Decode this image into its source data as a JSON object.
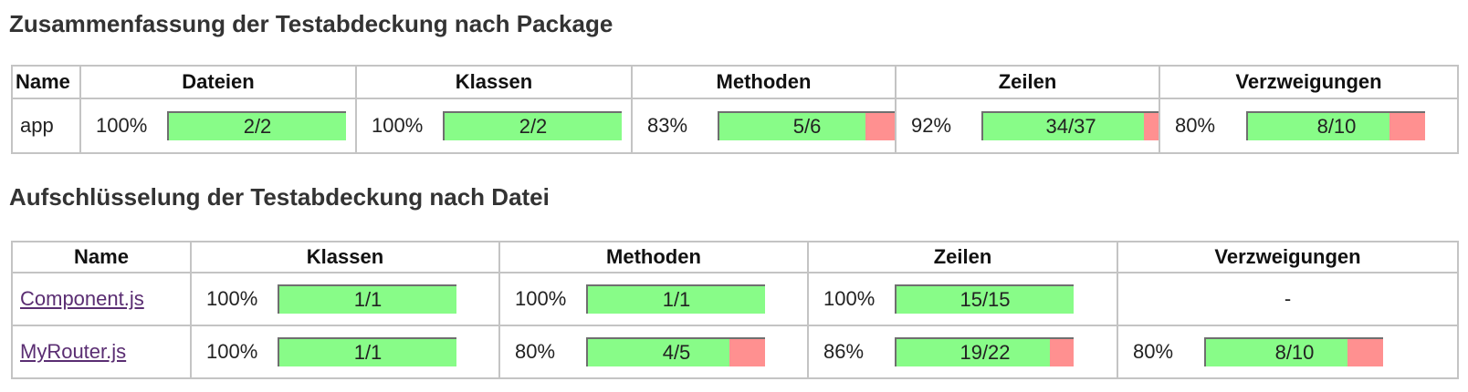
{
  "package_summary": {
    "title": "Zusammenfassung der Testabdeckung nach Package",
    "headers": [
      "Name",
      "Dateien",
      "Klassen",
      "Methoden",
      "Zeilen",
      "Verzweigungen"
    ],
    "rows": [
      {
        "name": "app",
        "cells": [
          {
            "pct": "100%",
            "label": "2/2",
            "ratio": 1.0
          },
          {
            "pct": "100%",
            "label": "2/2",
            "ratio": 1.0
          },
          {
            "pct": "83%",
            "label": "5/6",
            "ratio": 0.8333
          },
          {
            "pct": "92%",
            "label": "34/37",
            "ratio": 0.9189
          },
          {
            "pct": "80%",
            "label": "8/10",
            "ratio": 0.8
          }
        ]
      }
    ]
  },
  "file_breakdown": {
    "title": "Aufschlüsselung der Testabdeckung nach Datei",
    "headers": [
      "Name",
      "Klassen",
      "Methoden",
      "Zeilen",
      "Verzweigungen"
    ],
    "rows": [
      {
        "name": "Component.js",
        "cells": [
          {
            "pct": "100%",
            "label": "1/1",
            "ratio": 1.0
          },
          {
            "pct": "100%",
            "label": "1/1",
            "ratio": 1.0
          },
          {
            "pct": "100%",
            "label": "15/15",
            "ratio": 1.0
          },
          {
            "empty": "-"
          }
        ]
      },
      {
        "name": "MyRouter.js",
        "cells": [
          {
            "pct": "100%",
            "label": "1/1",
            "ratio": 1.0
          },
          {
            "pct": "80%",
            "label": "4/5",
            "ratio": 0.8
          },
          {
            "pct": "86%",
            "label": "19/22",
            "ratio": 0.8636
          },
          {
            "pct": "80%",
            "label": "8/10",
            "ratio": 0.8
          }
        ]
      }
    ]
  },
  "colors": {
    "covered": "#88fc88",
    "uncovered": "#ff9090",
    "link": "#5a2d72"
  }
}
